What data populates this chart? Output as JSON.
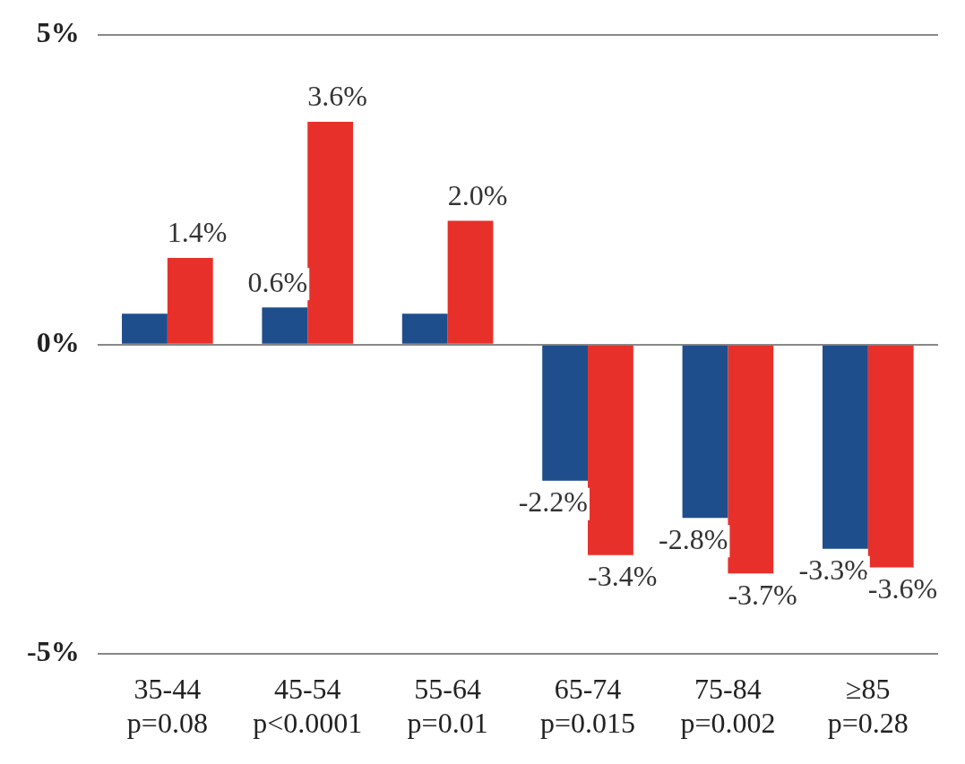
{
  "chart_data": {
    "type": "bar",
    "categories": [
      "35-44\np=0.08",
      "45-54\np<0.0001",
      "55-64\np=0.01",
      "65-74\np=0.015",
      "75-84\np=0.002",
      "≥85\np=0.28"
    ],
    "series": [
      {
        "color": "#1f4e8c",
        "values": [
          0.5,
          0.6,
          0.5,
          -2.2,
          -2.8,
          -3.3
        ],
        "value_labels": [
          null,
          "0.6%",
          null,
          "-2.2%",
          "-2.8%",
          "-3.3%"
        ]
      },
      {
        "color": "#e8302a",
        "values": [
          1.4,
          3.6,
          2.0,
          -3.4,
          -3.7,
          -3.6
        ],
        "value_labels": [
          "1.4%",
          "3.6%",
          "2.0%",
          "-3.4%",
          "-3.7%",
          "-3.6%"
        ]
      }
    ],
    "ylim": [
      -5,
      5
    ],
    "yticks": [
      {
        "value": -5,
        "label": "-5%"
      },
      {
        "value": 0,
        "label": "0%"
      },
      {
        "value": 5,
        "label": "5%"
      }
    ],
    "grid": "y",
    "legend": false
  }
}
